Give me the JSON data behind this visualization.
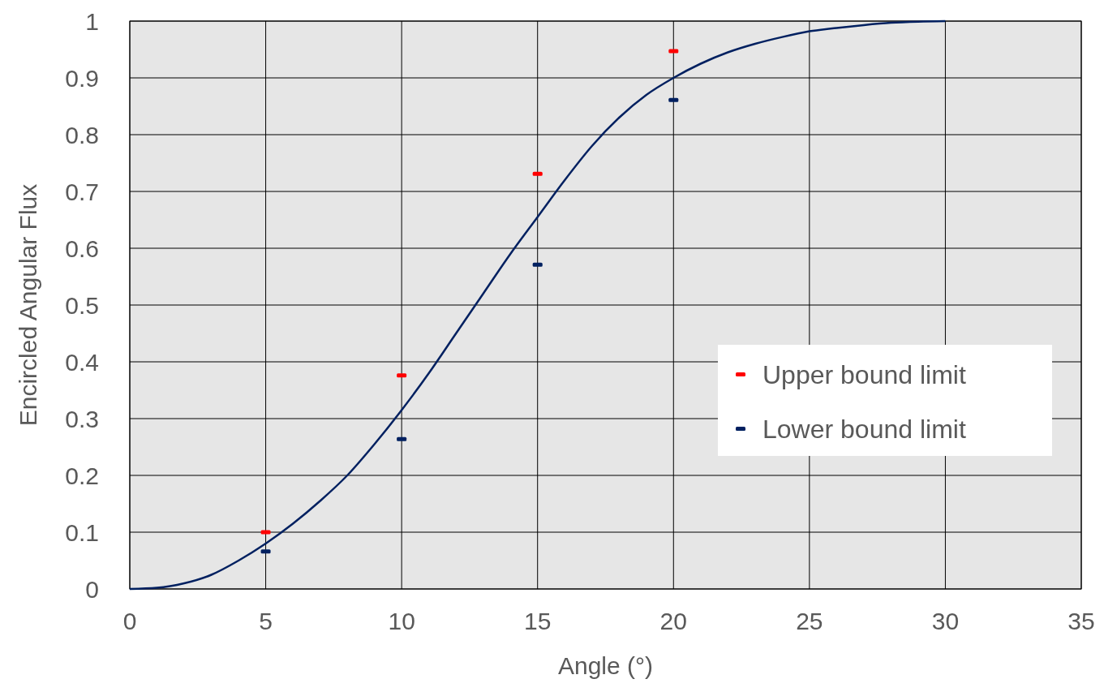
{
  "chart_data": {
    "type": "scatter",
    "xlabel": "Angle (°)",
    "ylabel": "Encircled Angular Flux",
    "xlim": [
      0,
      35
    ],
    "xticks": [
      0,
      5,
      10,
      15,
      20,
      25,
      30,
      35
    ],
    "ylim": [
      0,
      1
    ],
    "yticks": [
      0,
      0.1,
      0.2,
      0.3,
      0.4,
      0.5,
      0.6,
      0.7,
      0.8,
      0.9,
      1
    ],
    "grid": true,
    "legend": "right",
    "series": [
      {
        "name": "Upper bound limit",
        "color": "#ff0000",
        "x": [
          5,
          10,
          15,
          20
        ],
        "values": [
          0.1,
          0.376,
          0.731,
          0.947
        ]
      },
      {
        "name": "Lower bound limit",
        "color": "#002060",
        "x": [
          5,
          10,
          15,
          20
        ],
        "values": [
          0.066,
          0.264,
          0.571,
          0.861
        ]
      },
      {
        "type": "line",
        "color": "#002060",
        "x": [
          0,
          1,
          2,
          3,
          4,
          5,
          6,
          7,
          8,
          9,
          10,
          11,
          12,
          13,
          14,
          15,
          16,
          17,
          18,
          19,
          20,
          21,
          22,
          23,
          24,
          25,
          26,
          27,
          28,
          29,
          30
        ],
        "values": [
          0,
          0.002,
          0.01,
          0.025,
          0.05,
          0.08,
          0.115,
          0.155,
          0.2,
          0.255,
          0.315,
          0.38,
          0.45,
          0.52,
          0.59,
          0.655,
          0.72,
          0.78,
          0.83,
          0.87,
          0.9,
          0.925,
          0.945,
          0.96,
          0.972,
          0.982,
          0.988,
          0.993,
          0.997,
          0.999,
          1
        ]
      }
    ]
  }
}
